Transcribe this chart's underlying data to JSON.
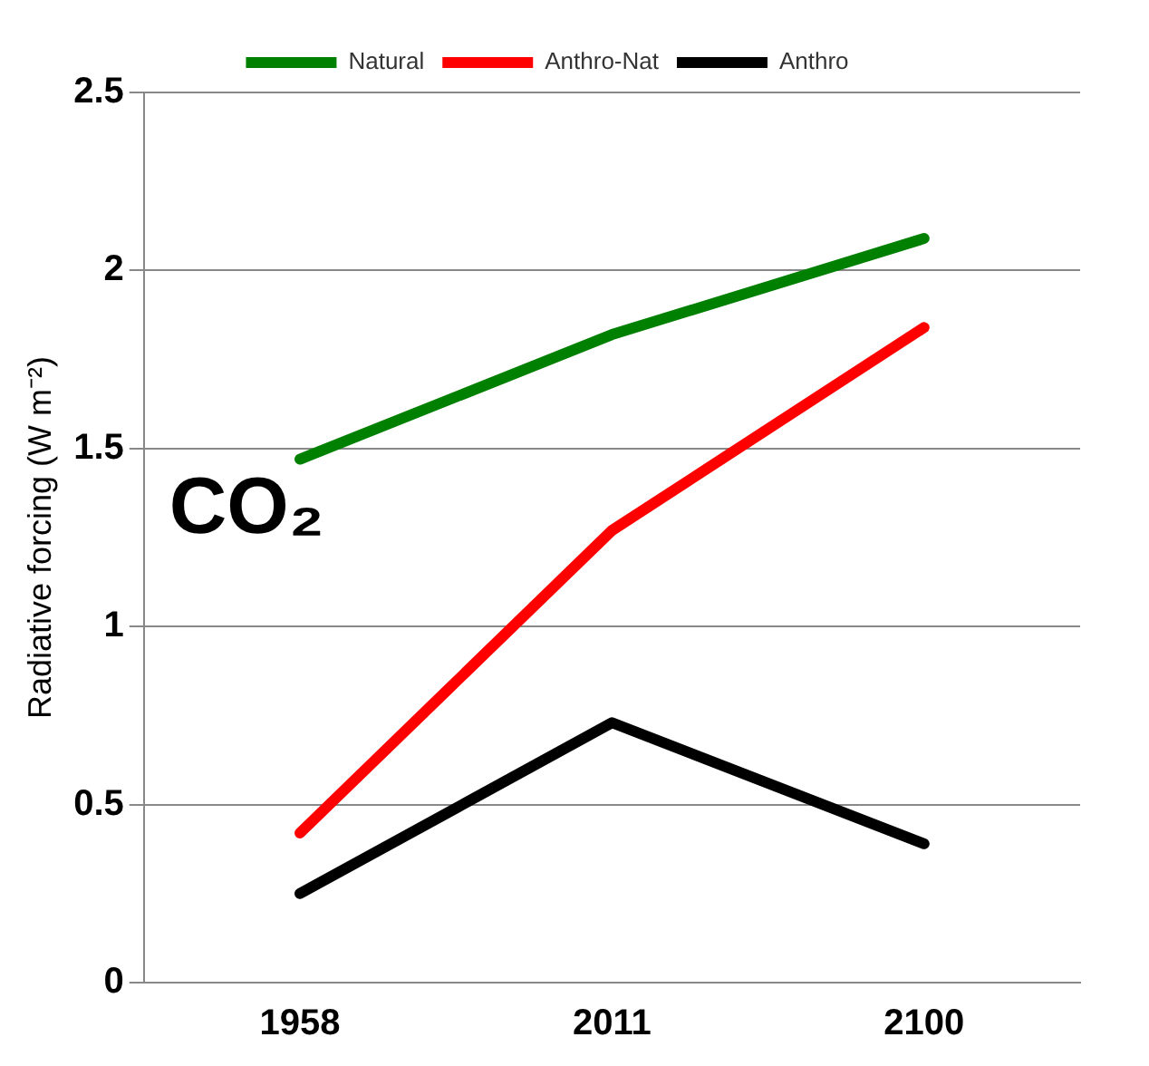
{
  "chart_data": {
    "type": "line",
    "ylabel": "Radiative forcing (W m⁻²)",
    "categories": [
      "1958",
      "2011",
      "2100"
    ],
    "series": [
      {
        "name": "Natural",
        "color": "#008000",
        "values": [
          1.47,
          1.82,
          2.09
        ]
      },
      {
        "name": "Anthro-Nat",
        "color": "#ff0000",
        "values": [
          0.42,
          1.27,
          1.84
        ]
      },
      {
        "name": "Anthro",
        "color": "#000000",
        "values": [
          0.25,
          0.73,
          0.39
        ]
      }
    ],
    "ylim": [
      0,
      2.5
    ],
    "yticks": [
      0,
      0.5,
      1,
      1.5,
      2,
      2.5
    ],
    "grid": "y",
    "legend": "top",
    "marker": "none",
    "annotations": [
      "CO₂"
    ]
  }
}
